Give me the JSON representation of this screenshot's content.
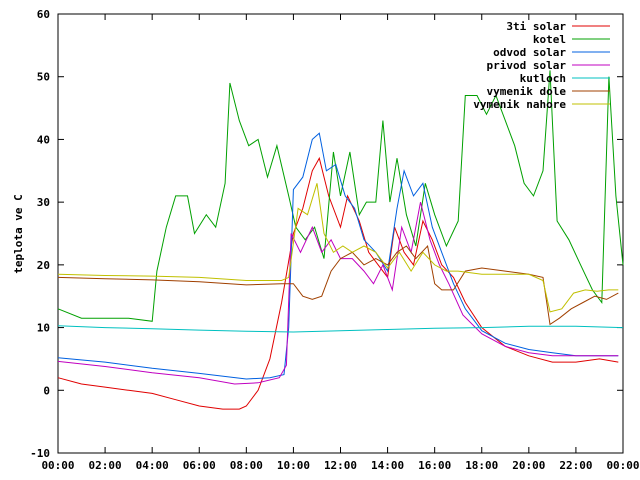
{
  "chart_data": {
    "type": "line",
    "title": "",
    "xlabel": "",
    "ylabel": "teplota ve C",
    "xlim": [
      0,
      24
    ],
    "ylim": [
      -10,
      60
    ],
    "x_ticks": [
      "00:00",
      "02:00",
      "04:00",
      "06:00",
      "08:00",
      "10:00",
      "12:00",
      "14:00",
      "16:00",
      "18:00",
      "20:00",
      "22:00",
      "00:00"
    ],
    "y_ticks": [
      -10,
      0,
      10,
      20,
      30,
      40,
      50,
      60
    ],
    "grid": false,
    "legend_position": "top-right",
    "series": [
      {
        "name": "3ti solar",
        "color": "#e00000",
        "points": [
          [
            0,
            2
          ],
          [
            1,
            1
          ],
          [
            2,
            0.5
          ],
          [
            3,
            0
          ],
          [
            4,
            -0.5
          ],
          [
            5,
            -1.5
          ],
          [
            6,
            -2.5
          ],
          [
            7,
            -3
          ],
          [
            7.7,
            -3
          ],
          [
            8,
            -2.5
          ],
          [
            8.5,
            0
          ],
          [
            9,
            5
          ],
          [
            9.5,
            14
          ],
          [
            10,
            25
          ],
          [
            10.4,
            29
          ],
          [
            10.8,
            35
          ],
          [
            11.1,
            37
          ],
          [
            11.5,
            31
          ],
          [
            12,
            26
          ],
          [
            12.3,
            31
          ],
          [
            12.8,
            27
          ],
          [
            13.2,
            22
          ],
          [
            13.6,
            20
          ],
          [
            14,
            18
          ],
          [
            14.3,
            26
          ],
          [
            14.7,
            22
          ],
          [
            15.1,
            20
          ],
          [
            15.5,
            27
          ],
          [
            15.9,
            24
          ],
          [
            16.3,
            20
          ],
          [
            16.8,
            18
          ],
          [
            17.3,
            14
          ],
          [
            18,
            10
          ],
          [
            19,
            7
          ],
          [
            20,
            5.5
          ],
          [
            21,
            4.5
          ],
          [
            22,
            4.5
          ],
          [
            23,
            5
          ],
          [
            23.8,
            4.5
          ]
        ]
      },
      {
        "name": "kotel",
        "color": "#00a000",
        "points": [
          [
            0,
            13
          ],
          [
            1,
            11.5
          ],
          [
            2,
            11.5
          ],
          [
            3,
            11.5
          ],
          [
            4,
            11
          ],
          [
            4.2,
            19
          ],
          [
            4.6,
            26
          ],
          [
            5,
            31
          ],
          [
            5.5,
            31
          ],
          [
            5.8,
            25
          ],
          [
            6.3,
            28
          ],
          [
            6.7,
            26
          ],
          [
            7.1,
            33
          ],
          [
            7.3,
            49
          ],
          [
            7.7,
            43
          ],
          [
            8.1,
            39
          ],
          [
            8.5,
            40
          ],
          [
            8.9,
            34
          ],
          [
            9.3,
            39
          ],
          [
            9.8,
            31
          ],
          [
            10.1,
            26
          ],
          [
            10.5,
            24
          ],
          [
            10.9,
            26
          ],
          [
            11.3,
            21
          ],
          [
            11.7,
            38
          ],
          [
            12,
            31
          ],
          [
            12.4,
            38
          ],
          [
            12.8,
            28
          ],
          [
            13.1,
            30
          ],
          [
            13.5,
            30
          ],
          [
            13.8,
            43
          ],
          [
            14.1,
            30
          ],
          [
            14.4,
            37
          ],
          [
            14.8,
            28
          ],
          [
            15.2,
            23
          ],
          [
            15.6,
            33
          ],
          [
            16,
            28
          ],
          [
            16.5,
            23
          ],
          [
            17,
            27
          ],
          [
            17.3,
            47
          ],
          [
            17.8,
            47
          ],
          [
            18.2,
            44
          ],
          [
            18.6,
            47
          ],
          [
            19,
            43
          ],
          [
            19.4,
            39
          ],
          [
            19.8,
            33
          ],
          [
            20.2,
            31
          ],
          [
            20.6,
            35
          ],
          [
            20.9,
            51
          ],
          [
            21.2,
            27
          ],
          [
            21.7,
            24
          ],
          [
            22.2,
            20
          ],
          [
            22.7,
            16
          ],
          [
            23.1,
            14
          ],
          [
            23.4,
            50
          ],
          [
            23.7,
            31
          ],
          [
            24,
            20
          ]
        ]
      },
      {
        "name": "odvod solar",
        "color": "#0060e0",
        "points": [
          [
            0,
            5.2
          ],
          [
            2,
            4.5
          ],
          [
            4,
            3.5
          ],
          [
            6,
            2.7
          ],
          [
            8,
            1.8
          ],
          [
            9,
            2
          ],
          [
            9.6,
            2.5
          ],
          [
            9.8,
            10
          ],
          [
            10,
            32
          ],
          [
            10.4,
            34
          ],
          [
            10.8,
            40
          ],
          [
            11.1,
            41
          ],
          [
            11.4,
            35
          ],
          [
            11.8,
            36
          ],
          [
            12.2,
            31
          ],
          [
            12.6,
            29
          ],
          [
            13,
            24
          ],
          [
            13.5,
            22
          ],
          [
            14,
            19
          ],
          [
            14.4,
            29
          ],
          [
            14.7,
            35
          ],
          [
            15.1,
            31
          ],
          [
            15.5,
            33
          ],
          [
            15.9,
            26
          ],
          [
            16.3,
            22
          ],
          [
            16.8,
            17
          ],
          [
            17.3,
            13
          ],
          [
            18,
            9.5
          ],
          [
            19,
            7.5
          ],
          [
            20,
            6.5
          ],
          [
            21,
            6
          ],
          [
            22,
            5.5
          ],
          [
            23,
            5.5
          ],
          [
            23.8,
            5.5
          ]
        ]
      },
      {
        "name": "privod solar",
        "color": "#c000c0",
        "points": [
          [
            0,
            4.6
          ],
          [
            2,
            3.8
          ],
          [
            4,
            2.8
          ],
          [
            6,
            2
          ],
          [
            7.5,
            1
          ],
          [
            8.5,
            1.2
          ],
          [
            9.4,
            2
          ],
          [
            9.7,
            4
          ],
          [
            9.9,
            25
          ],
          [
            10.3,
            22
          ],
          [
            10.8,
            26
          ],
          [
            11.2,
            22
          ],
          [
            11.6,
            24
          ],
          [
            12,
            21
          ],
          [
            12.5,
            21
          ],
          [
            13,
            19
          ],
          [
            13.4,
            17
          ],
          [
            13.8,
            20
          ],
          [
            14.2,
            16
          ],
          [
            14.6,
            26
          ],
          [
            15,
            22
          ],
          [
            15.4,
            30
          ],
          [
            15.8,
            24
          ],
          [
            16.2,
            20
          ],
          [
            16.6,
            17
          ],
          [
            17.2,
            12
          ],
          [
            18,
            9
          ],
          [
            19,
            7
          ],
          [
            20,
            6
          ],
          [
            21,
            5.5
          ],
          [
            22,
            5.5
          ],
          [
            23,
            5.5
          ],
          [
            23.8,
            5.5
          ]
        ]
      },
      {
        "name": "kutloch",
        "color": "#00c0c0",
        "points": [
          [
            0,
            10.3
          ],
          [
            2,
            10
          ],
          [
            4,
            9.8
          ],
          [
            6,
            9.6
          ],
          [
            8,
            9.4
          ],
          [
            10,
            9.3
          ],
          [
            12,
            9.5
          ],
          [
            14,
            9.7
          ],
          [
            16,
            9.9
          ],
          [
            18,
            10
          ],
          [
            20,
            10.2
          ],
          [
            22,
            10.2
          ],
          [
            24,
            10
          ]
        ]
      },
      {
        "name": "vymenik dole",
        "color": "#a04000",
        "points": [
          [
            0,
            18
          ],
          [
            2,
            17.8
          ],
          [
            4,
            17.6
          ],
          [
            6,
            17.3
          ],
          [
            8,
            16.8
          ],
          [
            9.5,
            17
          ],
          [
            10,
            17
          ],
          [
            10.4,
            15
          ],
          [
            10.8,
            14.5
          ],
          [
            11.2,
            15
          ],
          [
            11.6,
            19
          ],
          [
            12,
            21
          ],
          [
            12.5,
            22
          ],
          [
            13,
            20
          ],
          [
            13.5,
            21
          ],
          [
            14,
            20
          ],
          [
            14.4,
            22
          ],
          [
            14.8,
            23
          ],
          [
            15.2,
            21
          ],
          [
            15.7,
            23
          ],
          [
            16,
            17
          ],
          [
            16.3,
            16
          ],
          [
            16.8,
            16
          ],
          [
            17.3,
            19
          ],
          [
            18,
            19.5
          ],
          [
            19,
            19
          ],
          [
            20,
            18.5
          ],
          [
            20.6,
            18
          ],
          [
            20.9,
            10.5
          ],
          [
            21.3,
            11.5
          ],
          [
            21.8,
            13
          ],
          [
            22.3,
            14
          ],
          [
            22.8,
            15
          ],
          [
            23.3,
            14.5
          ],
          [
            23.8,
            15.5
          ]
        ]
      },
      {
        "name": "vymenik nahore",
        "color": "#c0c000",
        "points": [
          [
            0,
            18.5
          ],
          [
            2,
            18.3
          ],
          [
            4,
            18.2
          ],
          [
            6,
            18
          ],
          [
            8,
            17.5
          ],
          [
            9.5,
            17.5
          ],
          [
            9.8,
            18
          ],
          [
            10.2,
            29
          ],
          [
            10.6,
            28
          ],
          [
            11,
            33
          ],
          [
            11.3,
            25
          ],
          [
            11.7,
            22
          ],
          [
            12.1,
            23
          ],
          [
            12.5,
            22
          ],
          [
            13,
            23
          ],
          [
            13.5,
            22
          ],
          [
            14,
            19.5
          ],
          [
            14.5,
            22
          ],
          [
            15,
            19
          ],
          [
            15.5,
            22
          ],
          [
            16,
            20
          ],
          [
            16.5,
            19
          ],
          [
            17,
            19
          ],
          [
            18,
            18.5
          ],
          [
            19,
            18.5
          ],
          [
            20,
            18.5
          ],
          [
            20.6,
            17.5
          ],
          [
            20.9,
            12.5
          ],
          [
            21.4,
            13
          ],
          [
            21.9,
            15.5
          ],
          [
            22.4,
            16
          ],
          [
            22.9,
            15.8
          ],
          [
            23.4,
            16
          ],
          [
            23.8,
            16
          ]
        ]
      }
    ]
  }
}
